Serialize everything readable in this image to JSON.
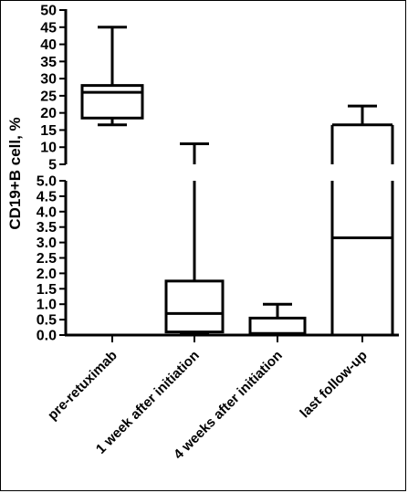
{
  "chart_data": {
    "type": "box",
    "ylabel": "CD19+B cell, %",
    "xlabel": "",
    "title": "",
    "axis_break": true,
    "lower_axis": {
      "ylim": [
        0,
        5.0
      ],
      "ticks": [
        "0.0",
        "0.5",
        "1.0",
        "1.5",
        "2.0",
        "2.5",
        "3.0",
        "3.5",
        "4.0",
        "4.5",
        "5.0"
      ]
    },
    "upper_axis": {
      "ylim": [
        5,
        50
      ],
      "ticks": [
        "5",
        "10",
        "15",
        "20",
        "25",
        "30",
        "35",
        "40",
        "45",
        "50"
      ]
    },
    "categories": [
      "pre-retuximab",
      "1 week after initiation",
      "4 weeks after initiation",
      "last follow-up"
    ],
    "boxes": [
      {
        "category": "pre-retuximab",
        "min": 16.5,
        "q1": 18.5,
        "median": 26.0,
        "q3": 28.0,
        "max": 45.0
      },
      {
        "category": "1 week after initiation",
        "min": 0.02,
        "q1": 0.1,
        "median": 0.7,
        "q3": 1.75,
        "max": 11.0
      },
      {
        "category": "4 weeks after initiation",
        "min": 0.0,
        "q1": 0.0,
        "median": 0.05,
        "q3": 0.55,
        "max": 1.0
      },
      {
        "category": "last follow-up",
        "min": 0.0,
        "q1": 0.0,
        "median": 3.15,
        "q3": 16.5,
        "max": 22.0
      }
    ],
    "grid": false,
    "legend": "none"
  }
}
